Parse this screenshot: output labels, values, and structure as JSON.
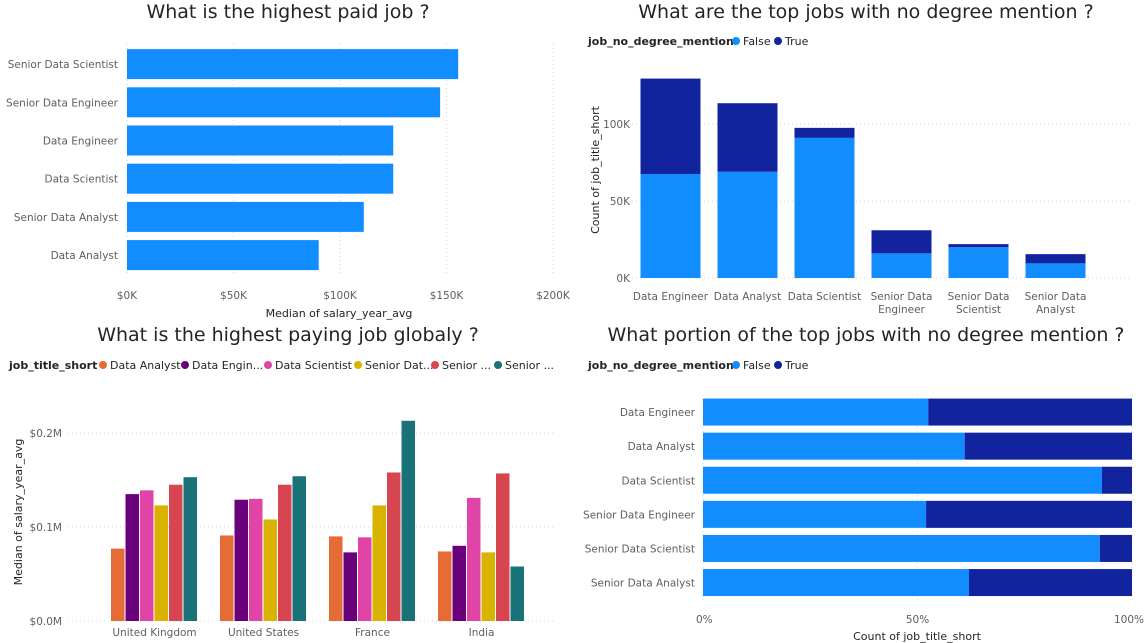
{
  "colors": {
    "bar": "#118dff",
    "false": "#118dff",
    "true": "#12239e",
    "series": [
      "#e66c37",
      "#6b007b",
      "#e044a7",
      "#d9b300",
      "#d64550",
      "#197278"
    ]
  },
  "chart_data": [
    {
      "type": "bar",
      "orientation": "horizontal",
      "title": "What is the highest paid job ?",
      "xlabel": "Median of salary_year_avg",
      "ylabel": "",
      "categories": [
        "Senior Data Scientist",
        "Senior Data Engineer",
        "Data Engineer",
        "Data Scientist",
        "Senior Data Analyst",
        "Data Analyst"
      ],
      "values": [
        155500,
        147000,
        125000,
        125000,
        111175,
        90000
      ],
      "xlim": [
        0,
        200000
      ],
      "xticks": [
        0,
        50000,
        100000,
        150000,
        200000
      ],
      "xtick_labels": [
        "$0K",
        "$50K",
        "$100K",
        "$150K",
        "$200K"
      ]
    },
    {
      "type": "bar",
      "stacked": true,
      "title": "What are the top jobs with no degree mention ?",
      "legend_title": "job_no_degree_mention",
      "legend_position": "top-left",
      "xlabel": "",
      "ylabel": "Count of job_title_short",
      "categories": [
        "Data Engineer",
        "Data Analyst",
        "Data Scientist",
        "Senior Data Engineer",
        "Senior Data Scientist",
        "Senior Data Analyst"
      ],
      "series": [
        {
          "name": "False",
          "values": [
            67500,
            69000,
            91000,
            16000,
            20000,
            9500
          ]
        },
        {
          "name": "True",
          "values": [
            62000,
            44500,
            6500,
            15000,
            2000,
            6000
          ]
        }
      ],
      "ylim": [
        0,
        130000
      ],
      "yticks": [
        0,
        50000,
        100000
      ],
      "ytick_labels": [
        "0K",
        "50K",
        "100K"
      ]
    },
    {
      "type": "bar",
      "grouped": true,
      "title": "What is the highest paying job globaly ?",
      "legend_title": "job_title_short",
      "legend_position": "top-left",
      "legend_labels": [
        "Data Analyst",
        "Data Engin...",
        "Data Scientist",
        "Senior Dat...",
        "Senior ...",
        "Senior ..."
      ],
      "xlabel": "",
      "ylabel": "Median of salary_year_avg",
      "categories": [
        "United Kingdom",
        "United States",
        "France",
        "India"
      ],
      "series": [
        {
          "name": "Data Analyst",
          "values": [
            77000,
            91000,
            90000,
            74000
          ]
        },
        {
          "name": "Data Engineer",
          "values": [
            135000,
            129000,
            73000,
            80000
          ]
        },
        {
          "name": "Data Scientist",
          "values": [
            139000,
            130000,
            89000,
            131000
          ]
        },
        {
          "name": "Senior Data Analyst",
          "values": [
            123000,
            108000,
            123000,
            73000
          ]
        },
        {
          "name": "Senior Data Engineer",
          "values": [
            145000,
            145000,
            158000,
            157000
          ]
        },
        {
          "name": "Senior Data Scientist",
          "values": [
            153000,
            154000,
            213000,
            58000
          ]
        }
      ],
      "ylim": [
        0,
        220000
      ],
      "yticks": [
        0,
        100000,
        200000
      ],
      "ytick_labels": [
        "$0.0M",
        "$0.1M",
        "$0.2M"
      ]
    },
    {
      "type": "bar",
      "orientation": "horizontal",
      "stacked": "percent",
      "title": "What portion of the top jobs with no degree mention ?",
      "legend_title": "job_no_degree_mention",
      "legend_position": "top-left",
      "xlabel": "Count of job_title_short",
      "ylabel": "",
      "categories": [
        "Data Engineer",
        "Data Analyst",
        "Data Scientist",
        "Senior Data Engineer",
        "Senior Data Scientist",
        "Senior Data Analyst"
      ],
      "series": [
        {
          "name": "False",
          "values": [
            52.5,
            61,
            93,
            52,
            92.5,
            62
          ]
        },
        {
          "name": "True",
          "values": [
            47.5,
            39,
            7,
            48,
            7.5,
            38
          ]
        }
      ],
      "xlim": [
        0,
        100
      ],
      "xticks": [
        0,
        50,
        100
      ],
      "xtick_labels": [
        "0%",
        "50%",
        "100%"
      ]
    }
  ]
}
